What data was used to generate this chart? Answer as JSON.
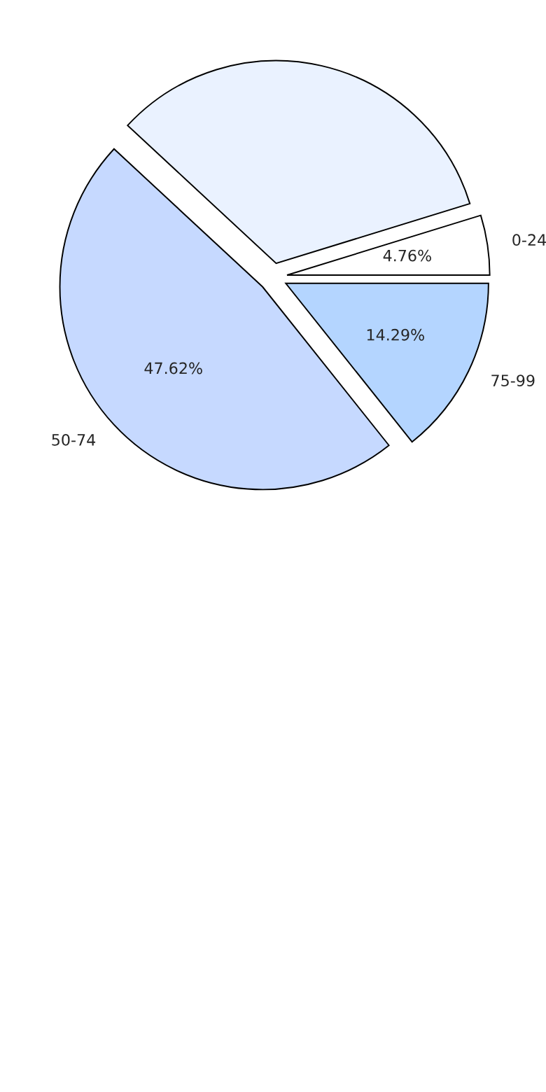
{
  "chart_data": {
    "type": "pie",
    "categories": [
      "0-24",
      null,
      "50-74",
      "75-99"
    ],
    "values": [
      4.76,
      33.33,
      47.62,
      14.29
    ],
    "colors": [
      "#ffffff",
      "#eaf2ff",
      "#c6d9ff",
      "#b4d5ff"
    ],
    "value_labels": [
      "4.76%",
      null,
      "47.62%",
      "14.29%"
    ]
  }
}
